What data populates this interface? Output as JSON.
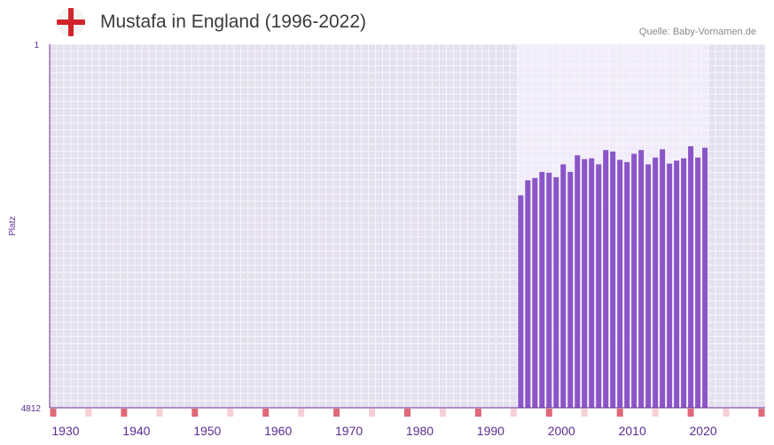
{
  "header": {
    "title": "Mustafa in England (1996-2022)",
    "source": "Quelle: Baby-Vornamen.de",
    "flag_icon": "england-flag-icon"
  },
  "chart_data": {
    "type": "bar",
    "title": "Mustafa in England (1996-2022)",
    "ylabel": "Platz",
    "xlabel": "",
    "ylim": [
      4812,
      1
    ],
    "y_axis_inverted": true,
    "y_tick_labels": [
      "1",
      "4812"
    ],
    "x_range": [
      1928,
      2029
    ],
    "x_tick_labels": [
      "1930",
      "1940",
      "1950",
      "1960",
      "1970",
      "1980",
      "1990",
      "2000",
      "2010",
      "2020"
    ],
    "highlight_range": [
      1994,
      2021
    ],
    "categories": [
      1994,
      1995,
      1996,
      1997,
      1998,
      1999,
      2000,
      2001,
      2002,
      2003,
      2004,
      2005,
      2006,
      2007,
      2008,
      2009,
      2010,
      2011,
      2012,
      2013,
      2014,
      2015,
      2016,
      2017,
      2018,
      2019,
      2020
    ],
    "values": [
      2000,
      1800,
      1770,
      1690,
      1700,
      1760,
      1590,
      1690,
      1470,
      1520,
      1510,
      1590,
      1400,
      1420,
      1530,
      1560,
      1450,
      1400,
      1590,
      1500,
      1390,
      1580,
      1540,
      1510,
      1350,
      1500,
      1370
    ],
    "colors": {
      "bar": "#8a55c8",
      "plot_bg": "#e4e0ee",
      "highlight_bg": "#f1ecfa",
      "grid": "#f7f5fb",
      "axis": "#6a2d8e",
      "tick_text": "#5b2d91",
      "marker_strong": "#e06878",
      "marker_light": "#f6cfd6"
    }
  }
}
